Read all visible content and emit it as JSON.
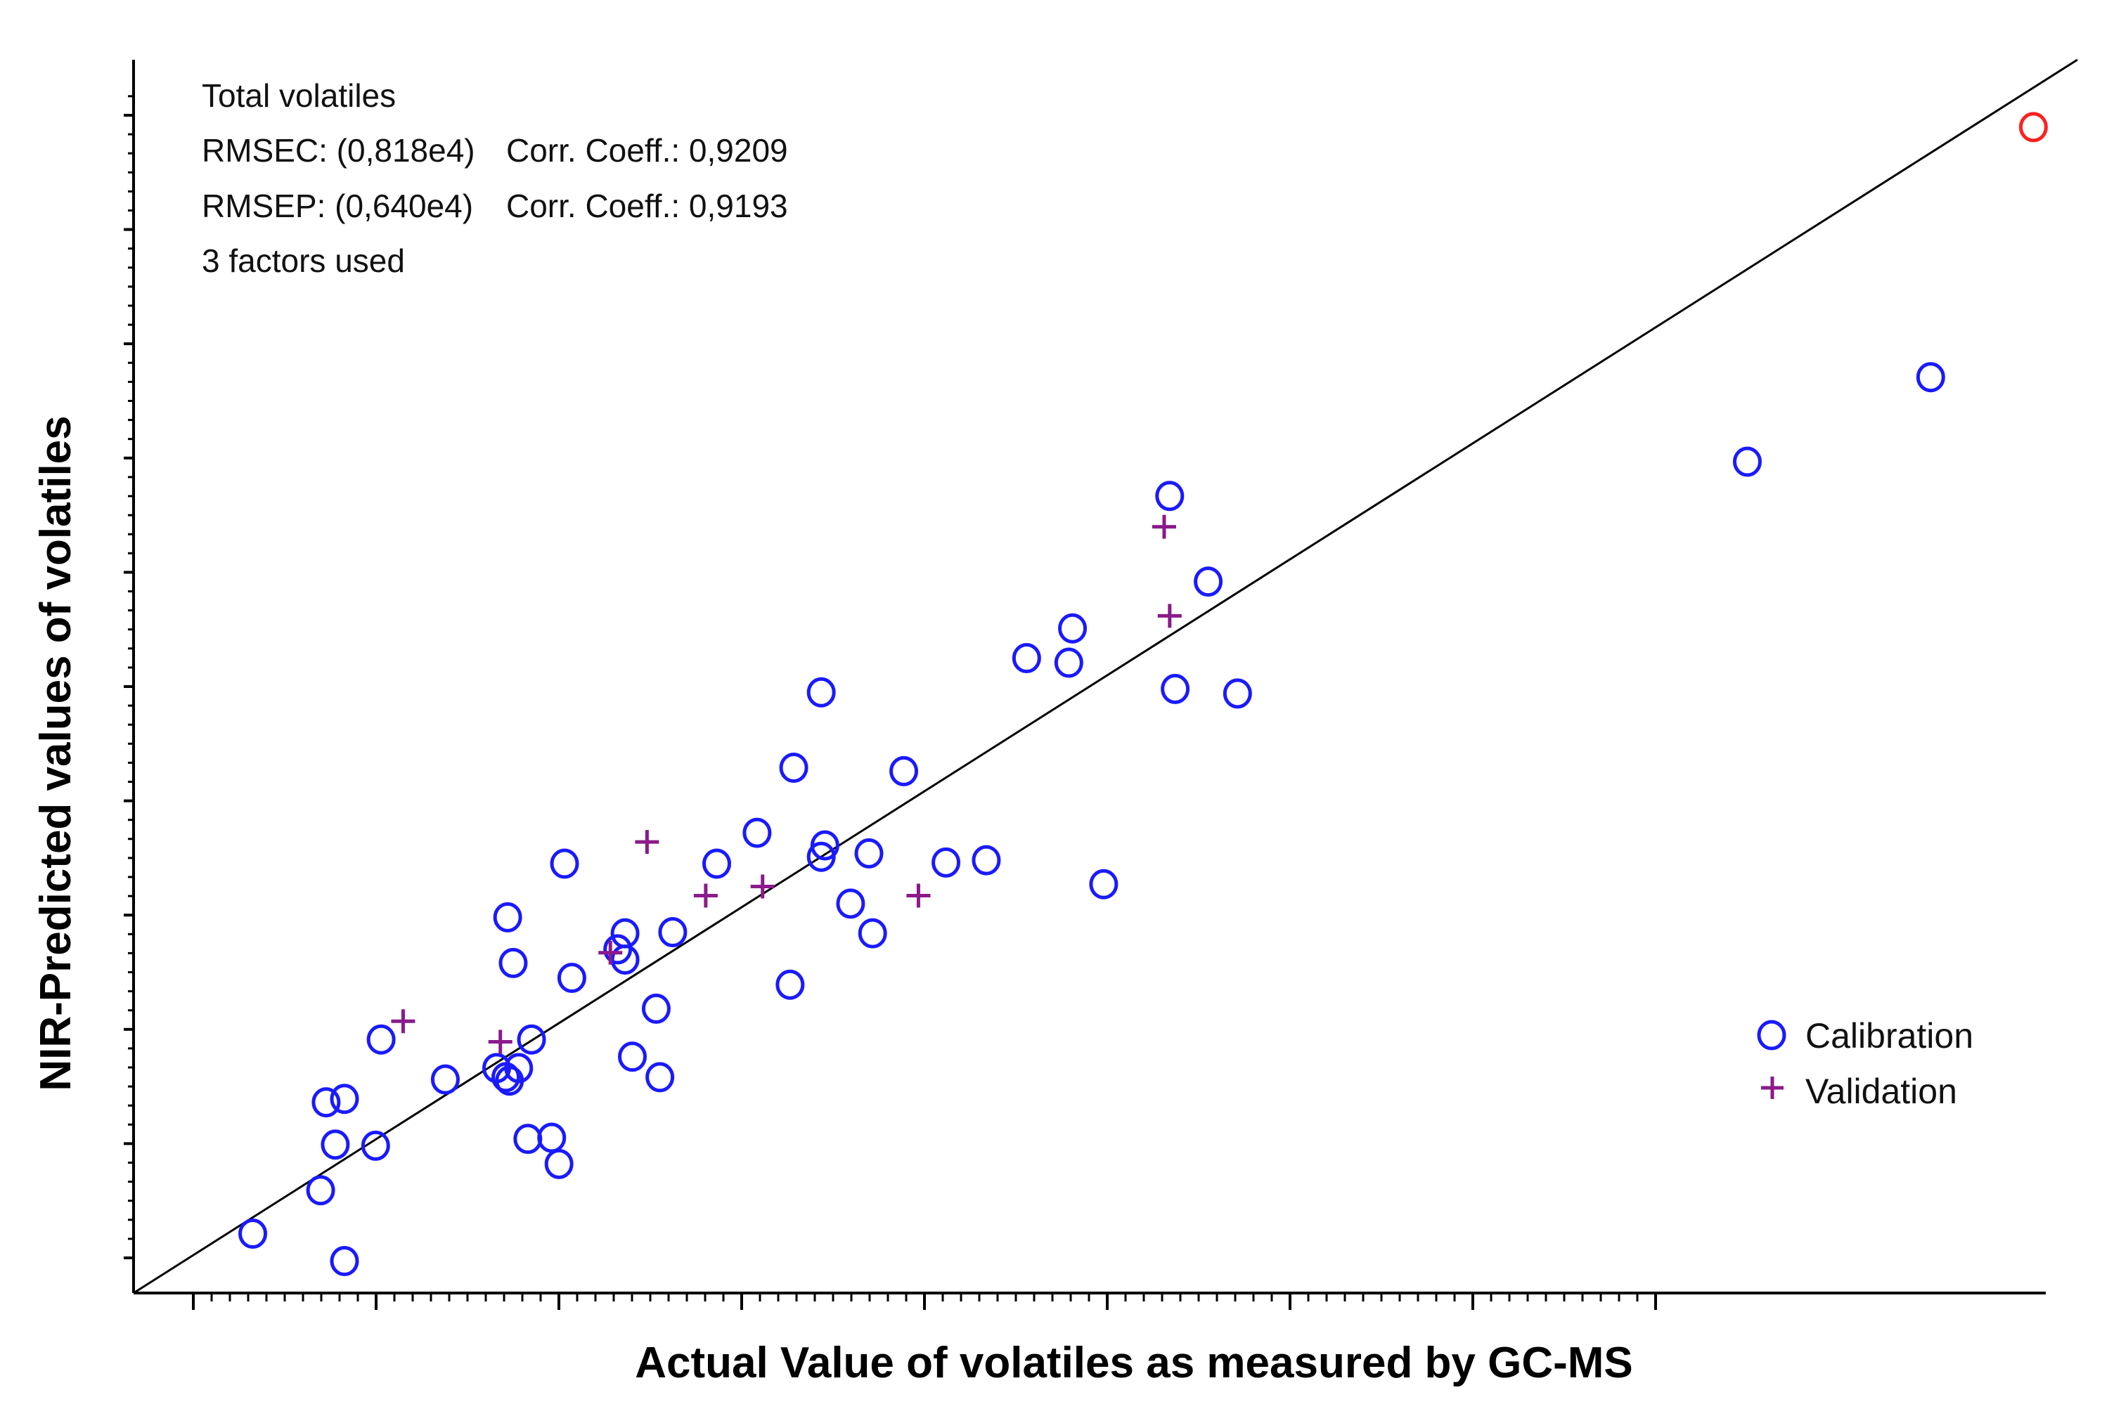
{
  "chart_data": {
    "type": "scatter",
    "title": "",
    "xlabel": "Actual Value of volatiles as measured by GC-MS",
    "ylabel": "NIR-Predicted values of volatiles",
    "xlim": [
      -0.3,
      10.3
    ],
    "ylim": [
      -0.3,
      10.5
    ],
    "annotations": {
      "dataset": "Total volatiles",
      "rmsec": "RMSEC: (0,818e4)",
      "rmsec_corr": "Corr. Coeff.: 0,9209",
      "rmsep": "RMSEP: (0,640e4)",
      "rmsep_corr": "Corr. Coeff.: 0,9193",
      "factors": "3 factors used"
    },
    "legend": {
      "position": "bottom-right",
      "calibration_label": "Calibration",
      "validation_label": "Validation"
    },
    "regression_line": {
      "x": [
        -0.3,
        10.3
      ],
      "y": [
        -0.3,
        10.5
      ]
    },
    "colors": {
      "calibration": "#1a1aff",
      "validation": "#8b1a8b",
      "highlight": "#ff2020",
      "line": "#000000",
      "axis": "#000000"
    },
    "series": [
      {
        "name": "Calibration",
        "marker": "circle",
        "x": [
          0.35,
          0.72,
          0.8,
          0.85,
          0.75,
          0.85,
          1.02,
          1.05,
          1.4,
          1.68,
          1.73,
          1.74,
          1.77,
          1.75,
          1.8,
          1.85,
          1.87,
          1.98,
          2.02,
          2.05,
          2.09,
          2.34,
          2.38,
          2.38,
          2.42,
          2.55,
          2.57,
          2.64,
          2.88,
          3.1,
          3.28,
          3.3,
          3.45,
          3.45,
          3.47,
          3.61,
          3.71,
          3.73,
          3.9,
          4.13,
          4.35,
          4.82,
          4.57,
          4.8,
          4.99,
          5.35,
          5.38,
          5.56,
          5.72,
          8.5,
          9.5,
          10.06
        ],
        "y": [
          0.22,
          0.6,
          1.0,
          1.4,
          1.37,
          -0.02,
          0.99,
          1.92,
          1.57,
          1.67,
          1.59,
          2.99,
          2.59,
          1.56,
          1.67,
          1.05,
          1.92,
          1.06,
          0.83,
          3.46,
          2.46,
          2.71,
          2.85,
          2.62,
          1.77,
          2.19,
          1.59,
          2.86,
          3.46,
          3.73,
          2.4,
          4.3,
          3.52,
          4.96,
          3.62,
          3.11,
          3.55,
          2.85,
          4.27,
          3.47,
          3.49,
          5.52,
          5.26,
          5.22,
          3.28,
          6.68,
          4.99,
          5.93,
          4.95,
          6.98,
          7.72,
          9.91
        ]
      },
      {
        "name": "Validation",
        "marker": "plus",
        "x": [
          1.17,
          1.7,
          2.3,
          2.5,
          2.82,
          3.13,
          3.98,
          5.32,
          5.35
        ],
        "y": [
          2.08,
          1.9,
          2.68,
          3.65,
          3.18,
          3.26,
          3.18,
          6.41,
          5.63
        ]
      }
    ],
    "highlighted_points": [
      {
        "x": 10.06,
        "y": 9.91
      }
    ]
  }
}
